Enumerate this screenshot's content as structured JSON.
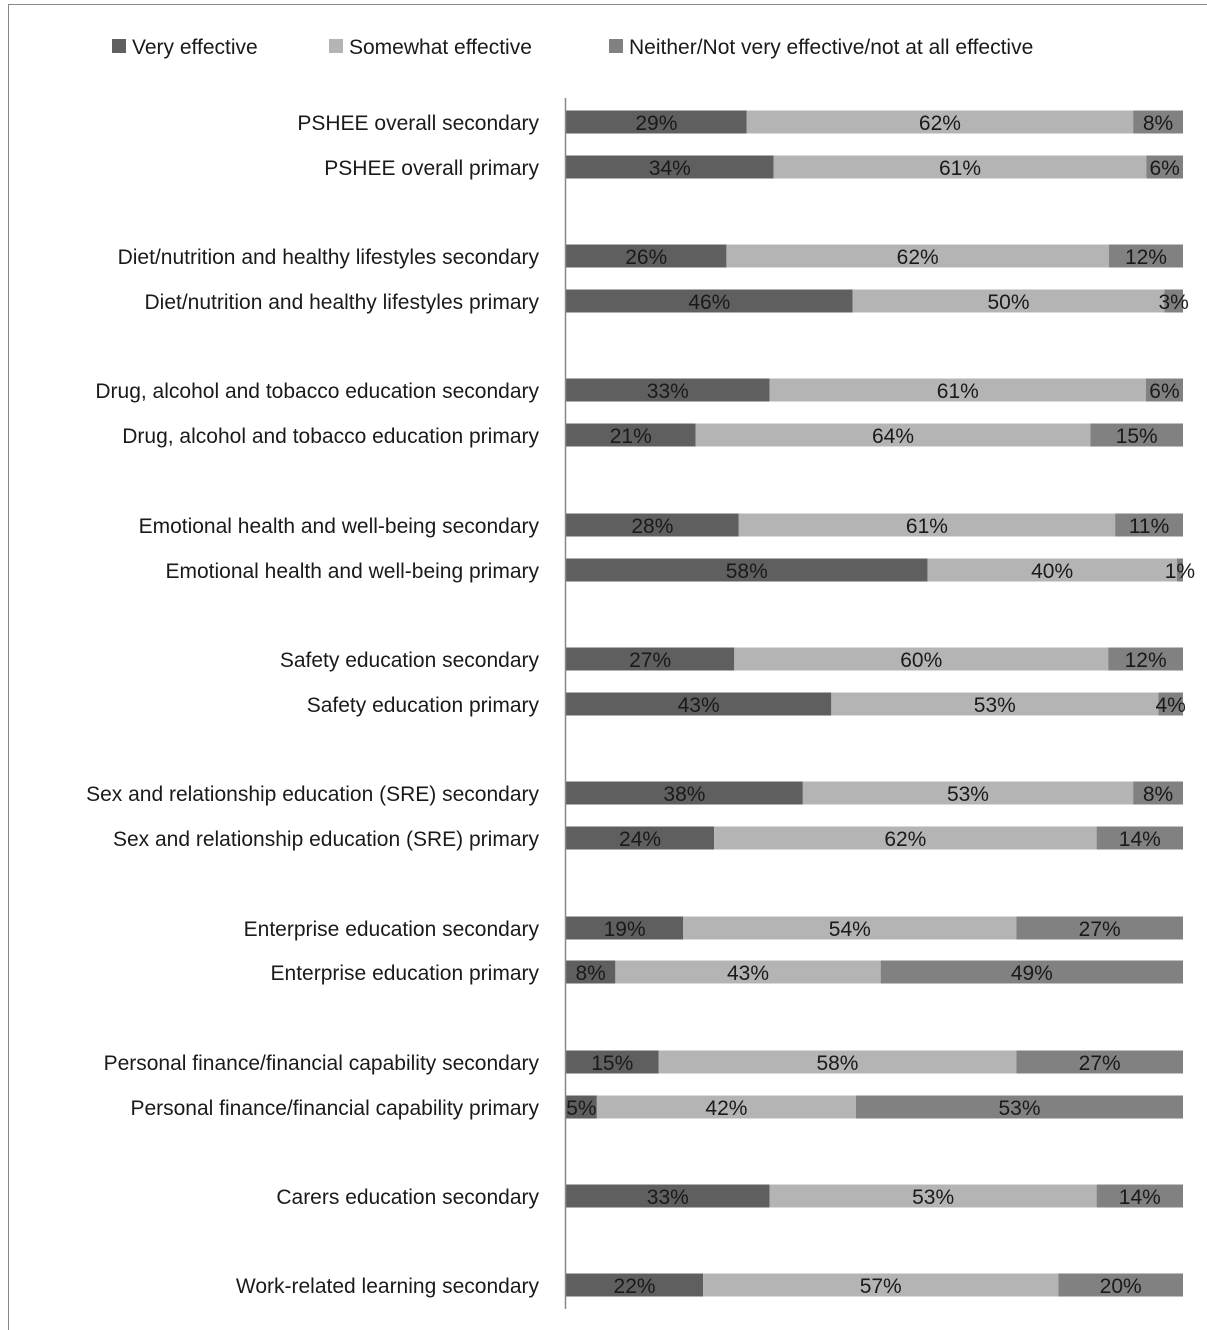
{
  "chart_data": {
    "type": "bar",
    "orientation": "horizontal",
    "stacked": true,
    "percent_stacked": true,
    "grid": false,
    "legend_position": "top",
    "xlim": [
      0,
      100
    ],
    "categories": [
      "PSHEE overall secondary",
      "PSHEE overall primary",
      "Diet/nutrition and healthy lifestyles secondary",
      "Diet/nutrition and healthy lifestyles primary",
      "Drug, alcohol and tobacco education secondary",
      "Drug, alcohol and tobacco education primary",
      "Emotional health and well-being secondary",
      "Emotional health and well-being primary",
      "Safety education secondary",
      "Safety education primary",
      "Sex and relationship education (SRE) secondary",
      "Sex and relationship education (SRE) primary",
      "Enterprise education secondary",
      "Enterprise education primary",
      "Personal finance/financial capability secondary",
      "Personal finance/financial capability primary",
      "Carers education secondary",
      "Work-related learning secondary"
    ],
    "series": [
      {
        "name": "Very effective",
        "color": "#5f5f5f",
        "values": [
          29,
          34,
          26,
          46,
          33,
          21,
          28,
          58,
          27,
          43,
          38,
          24,
          19,
          8,
          15,
          5,
          33,
          22
        ]
      },
      {
        "name": "Somewhat effective",
        "color": "#b4b4b4",
        "values": [
          62,
          61,
          62,
          50,
          61,
          64,
          61,
          40,
          60,
          53,
          53,
          62,
          54,
          43,
          58,
          42,
          53,
          57
        ]
      },
      {
        "name": "Neither/Not very effective/not at all effective",
        "color": "#818181",
        "values": [
          8,
          6,
          12,
          3,
          6,
          15,
          11,
          1,
          12,
          4,
          8,
          14,
          27,
          49,
          27,
          53,
          14,
          20
        ]
      }
    ]
  }
}
